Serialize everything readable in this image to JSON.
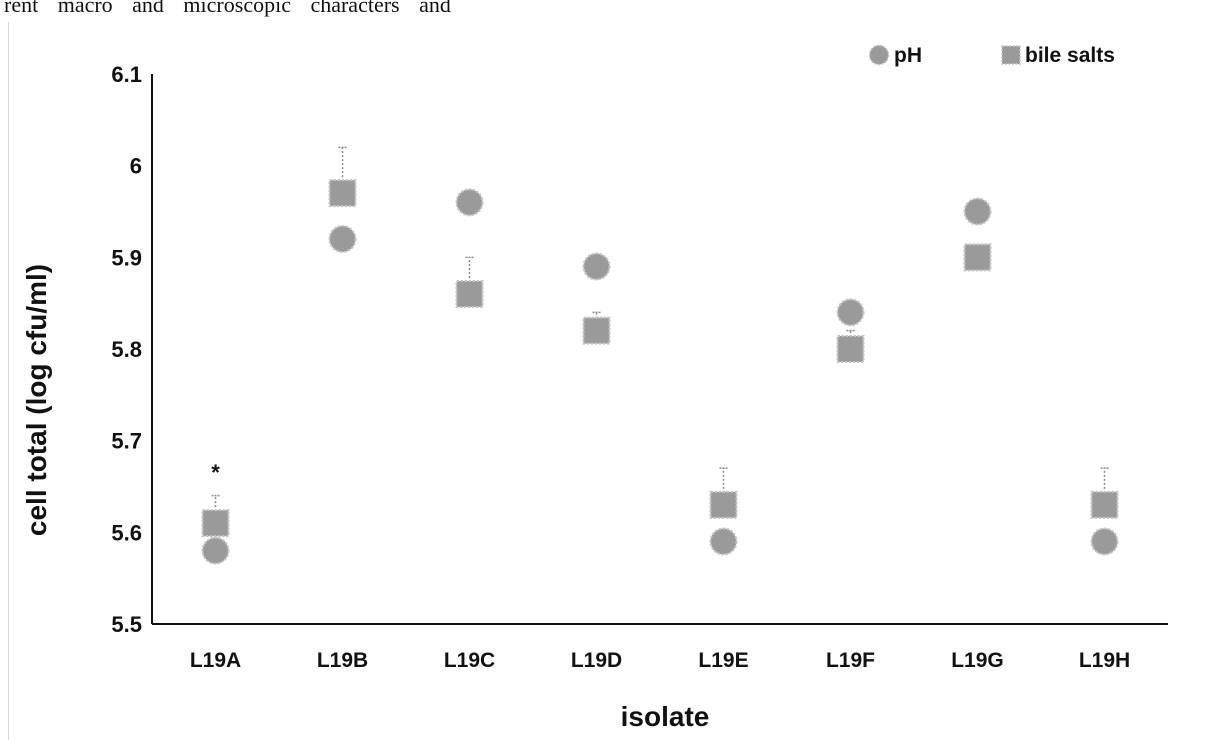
{
  "page": {
    "header_text": "rent macro and microscopic characters and"
  },
  "chart_data": {
    "type": "scatter",
    "categories": [
      "L19A",
      "L19B",
      "L19C",
      "L19D",
      "L19E",
      "L19F",
      "L19G",
      "L19H"
    ],
    "xlabel": "isolate",
    "ylabel": "cell total (log cfu/ml)",
    "ylim": [
      5.5,
      6.1
    ],
    "yticks": [
      "5.5",
      "5.6",
      "5.7",
      "5.8",
      "5.9",
      "6",
      "6.1"
    ],
    "ytick_values": [
      5.5,
      5.6,
      5.7,
      5.8,
      5.9,
      6.0,
      6.1
    ],
    "grid": false,
    "legend_position": "top-right",
    "series": [
      {
        "name": "pH",
        "marker": "circle",
        "color": "#9a9a9a",
        "values": [
          5.58,
          5.92,
          5.96,
          5.89,
          5.59,
          5.84,
          5.95,
          5.59
        ],
        "error_upper": [
          0,
          0,
          0,
          0,
          0,
          0,
          0,
          0
        ]
      },
      {
        "name": "bile salts",
        "marker": "square",
        "color": "#9a9a9a",
        "values": [
          5.61,
          5.97,
          5.86,
          5.82,
          5.63,
          5.8,
          5.9,
          5.63
        ],
        "error_upper": [
          0.03,
          0.05,
          0.04,
          0.02,
          0.04,
          0.02,
          0,
          0.04
        ]
      }
    ],
    "annotations": [
      {
        "category": "L19A",
        "value": 5.67,
        "text": "*"
      }
    ]
  }
}
